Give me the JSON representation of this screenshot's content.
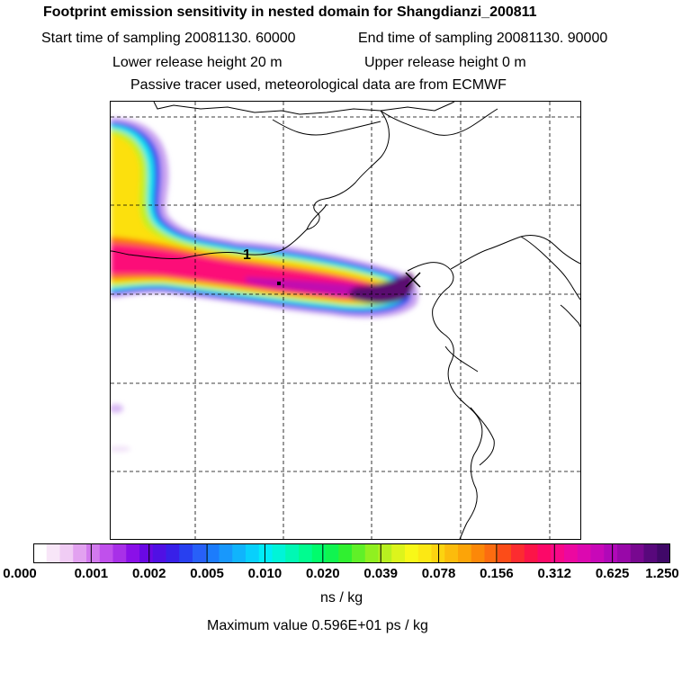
{
  "header": {
    "title": "Footprint emission sensitivity in nested domain for Shangdianzi_200811",
    "start_time": "Start time of sampling 20081130. 60000",
    "end_time": "End time of sampling 20081130. 90000",
    "lower_release": "Lower release height   20 m",
    "upper_release": "Upper release height    0 m",
    "tracer_info": "Passive tracer used, meteorological data are from ECMWF"
  },
  "map": {
    "site_label": "1",
    "receptor_marker": "x-marker-icon"
  },
  "colorbar": {
    "levels": [
      "0.000",
      "0.001",
      "0.002",
      "0.005",
      "0.010",
      "0.020",
      "0.039",
      "0.078",
      "0.156",
      "0.312",
      "0.625",
      "1.250"
    ],
    "colors": [
      "#ffffff",
      "#f8e6f8",
      "#f0ccf4",
      "#e2a2f0",
      "#d27aee",
      "#c050ec",
      "#a830e8",
      "#8a10e8",
      "#6a08e4",
      "#5010e4",
      "#3820e8",
      "#2840f0",
      "#2860f8",
      "#1c7cfc",
      "#1898fc",
      "#10b4fc",
      "#08d0fc",
      "#00ecf8",
      "#00f4d8",
      "#00f8b4",
      "#00fc90",
      "#00fc6c",
      "#10f450",
      "#30f030",
      "#60f028",
      "#90f020",
      "#b8f020",
      "#dcf41c",
      "#f8f818",
      "#fce814",
      "#fcd410",
      "#fcbc0c",
      "#fca408",
      "#fc8808",
      "#fc6c10",
      "#fc4c18",
      "#fc2c30",
      "#fc1448",
      "#fc0868",
      "#f80888",
      "#ec08a0",
      "#dc08b0",
      "#c808b8",
      "#b008b8",
      "#9808a8",
      "#780890",
      "#58087c",
      "#400868"
    ],
    "units": "ns / kg"
  },
  "footer": {
    "max_value": "Maximum value  0.596E+01 ps / kg"
  }
}
